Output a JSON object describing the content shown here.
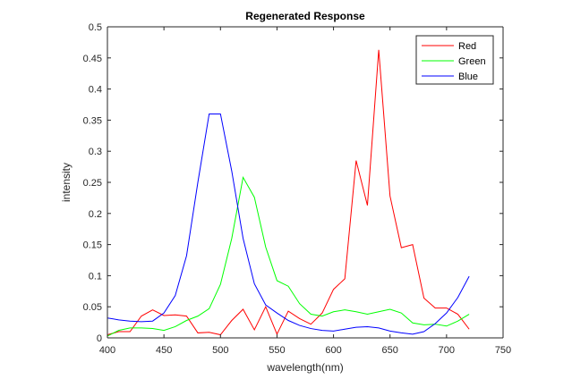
{
  "chart_data": {
    "type": "line",
    "title": "Regenerated Response",
    "xlabel": "wavelength(nm)",
    "ylabel": "intensity",
    "xlim": [
      400,
      750
    ],
    "ylim": [
      0,
      0.5
    ],
    "xticks": [
      "400",
      "450",
      "500",
      "550",
      "600",
      "650",
      "700",
      "750"
    ],
    "yticks": [
      "0",
      "0.05",
      "0.1",
      "0.15",
      "0.2",
      "0.25",
      "0.3",
      "0.35",
      "0.4",
      "0.45",
      "0.5"
    ],
    "grid": false,
    "legend_position": "top-right",
    "x": [
      400,
      410,
      420,
      430,
      440,
      450,
      460,
      470,
      480,
      490,
      500,
      510,
      520,
      530,
      540,
      550,
      560,
      570,
      580,
      590,
      600,
      610,
      620,
      630,
      640,
      650,
      660,
      670,
      680,
      690,
      700,
      710,
      720
    ],
    "series": [
      {
        "name": "Red",
        "color": "#ff0000",
        "values": [
          0.005,
          0.01,
          0.01,
          0.035,
          0.045,
          0.036,
          0.037,
          0.035,
          0.008,
          0.009,
          0.005,
          0.028,
          0.046,
          0.013,
          0.05,
          0.006,
          0.043,
          0.031,
          0.022,
          0.04,
          0.078,
          0.095,
          0.285,
          0.213,
          0.463,
          0.228,
          0.145,
          0.15,
          0.064,
          0.048,
          0.048,
          0.038,
          0.014
        ]
      },
      {
        "name": "Green",
        "color": "#00ff00",
        "values": [
          0.003,
          0.012,
          0.016,
          0.016,
          0.015,
          0.012,
          0.018,
          0.028,
          0.035,
          0.047,
          0.086,
          0.16,
          0.258,
          0.226,
          0.146,
          0.092,
          0.083,
          0.055,
          0.038,
          0.035,
          0.042,
          0.045,
          0.042,
          0.038,
          0.042,
          0.046,
          0.04,
          0.024,
          0.021,
          0.022,
          0.019,
          0.027,
          0.038
        ]
      },
      {
        "name": "Blue",
        "color": "#0000ff",
        "values": [
          0.032,
          0.029,
          0.027,
          0.026,
          0.027,
          0.04,
          0.068,
          0.132,
          0.25,
          0.36,
          0.36,
          0.268,
          0.16,
          0.087,
          0.053,
          0.04,
          0.028,
          0.02,
          0.015,
          0.012,
          0.011,
          0.014,
          0.017,
          0.018,
          0.016,
          0.011,
          0.008,
          0.006,
          0.01,
          0.023,
          0.04,
          0.065,
          0.099
        ]
      }
    ]
  }
}
